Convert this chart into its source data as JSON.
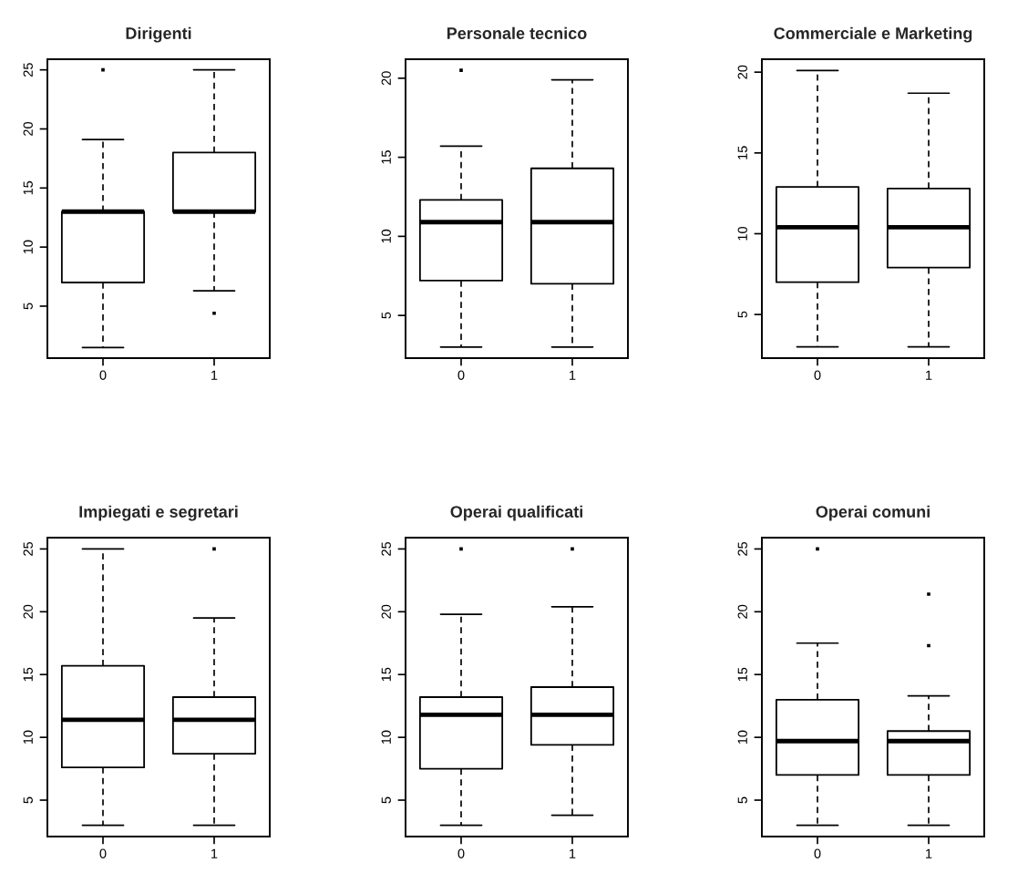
{
  "chart_data": [
    {
      "type": "box",
      "title": "Dirigenti",
      "categories": [
        "0",
        "1"
      ],
      "ylim": [
        0.6,
        25.9
      ],
      "yticks": [
        5,
        10,
        15,
        20,
        25
      ],
      "line_style": "dashed",
      "boxes": [
        {
          "low": 1.5,
          "q1": 7.0,
          "median": 13.0,
          "q3": 13.0,
          "high": 19.1,
          "outliers": [
            25
          ]
        },
        {
          "low": 6.3,
          "q1": 13.0,
          "median": 13.0,
          "q3": 18.0,
          "high": 25,
          "outliers": [
            4.4
          ]
        }
      ]
    },
    {
      "type": "box",
      "title": "Personale tecnico",
      "categories": [
        "0",
        "1"
      ],
      "ylim": [
        2.3,
        21.2
      ],
      "yticks": [
        5,
        10,
        15,
        20
      ],
      "line_style": "dashed",
      "boxes": [
        {
          "low": 3.0,
          "q1": 7.2,
          "median": 10.9,
          "q3": 12.3,
          "high": 15.7,
          "outliers": [
            20.5
          ]
        },
        {
          "low": 3.0,
          "q1": 7.0,
          "median": 10.9,
          "q3": 14.3,
          "high": 19.9
        }
      ]
    },
    {
      "type": "box",
      "title": "Commerciale e Marketing",
      "categories": [
        "0",
        "1"
      ],
      "ylim": [
        2.3,
        20.8
      ],
      "yticks": [
        5,
        10,
        15,
        20
      ],
      "line_style": "dashed",
      "boxes": [
        {
          "low": 3.0,
          "q1": 7.0,
          "median": 10.4,
          "q3": 12.9,
          "high": 20.1
        },
        {
          "low": 3.0,
          "q1": 7.9,
          "median": 10.4,
          "q3": 12.8,
          "high": 18.7
        }
      ]
    },
    {
      "type": "box",
      "title": "Impiegati e segretari",
      "categories": [
        "0",
        "1"
      ],
      "ylim": [
        2.1,
        25.9
      ],
      "yticks": [
        5,
        10,
        15,
        20,
        25
      ],
      "line_style": "dashed",
      "boxes": [
        {
          "low": 3.0,
          "q1": 7.6,
          "median": 11.4,
          "q3": 15.7,
          "high": 25
        },
        {
          "low": 3.0,
          "q1": 8.7,
          "median": 11.4,
          "q3": 13.2,
          "high": 19.5,
          "outliers": [
            25
          ]
        }
      ]
    },
    {
      "type": "box",
      "title": "Operai qualificati",
      "categories": [
        "0",
        "1"
      ],
      "ylim": [
        2.1,
        25.9
      ],
      "yticks": [
        5,
        10,
        15,
        20,
        25
      ],
      "line_style": "dashed",
      "boxes": [
        {
          "low": 3.0,
          "q1": 7.5,
          "median": 11.8,
          "q3": 13.2,
          "high": 19.8,
          "outliers": [
            25
          ]
        },
        {
          "low": 3.8,
          "q1": 9.4,
          "median": 11.8,
          "q3": 14.0,
          "high": 20.4,
          "outliers": [
            25
          ]
        }
      ]
    },
    {
      "type": "box",
      "title": "Operai comuni",
      "categories": [
        "0",
        "1"
      ],
      "ylim": [
        2.1,
        25.9
      ],
      "yticks": [
        5,
        10,
        15,
        20,
        25
      ],
      "line_style": "dashed",
      "boxes": [
        {
          "low": 3.0,
          "q1": 7.0,
          "median": 9.7,
          "q3": 13.0,
          "high": 17.5,
          "outliers": [
            25
          ]
        },
        {
          "low": 3.0,
          "q1": 7.0,
          "median": 9.7,
          "q3": 10.5,
          "high": 13.3,
          "outliers": [
            21.4,
            17.3
          ]
        }
      ]
    }
  ]
}
